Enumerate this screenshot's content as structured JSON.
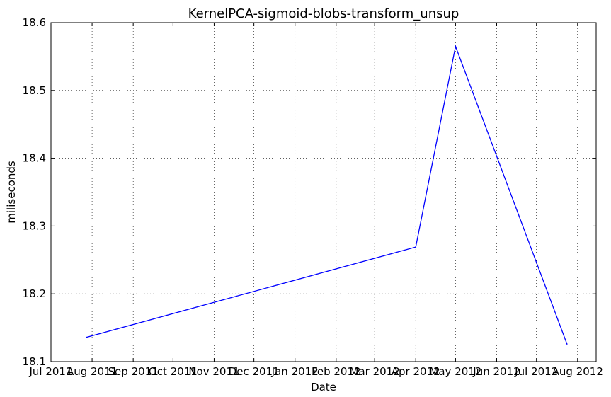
{
  "chart_data": {
    "type": "line",
    "title": "KernelPCA-sigmoid-blobs-transform_unsup",
    "xlabel": "Date",
    "ylabel": "miliseconds",
    "xlim": [
      "2011-07-01",
      "2012-08-15"
    ],
    "ylim": [
      18.1,
      18.6
    ],
    "x_ticks": [
      {
        "date": "2011-07-01",
        "label": "Jul 2011"
      },
      {
        "date": "2011-08-01",
        "label": "Aug 2011"
      },
      {
        "date": "2011-09-01",
        "label": "Sep 2011"
      },
      {
        "date": "2011-10-01",
        "label": "Oct 2011"
      },
      {
        "date": "2011-11-01",
        "label": "Nov 2011"
      },
      {
        "date": "2011-12-01",
        "label": "Dec 2011"
      },
      {
        "date": "2012-01-01",
        "label": "Jan 2012"
      },
      {
        "date": "2012-02-01",
        "label": "Feb 2012"
      },
      {
        "date": "2012-03-01",
        "label": "Mar 2012"
      },
      {
        "date": "2012-04-01",
        "label": "Apr 2012"
      },
      {
        "date": "2012-05-01",
        "label": "May 2012"
      },
      {
        "date": "2012-06-01",
        "label": "Jun 2012"
      },
      {
        "date": "2012-07-01",
        "label": "Jul 2012"
      },
      {
        "date": "2012-08-01",
        "label": "Aug 2012"
      }
    ],
    "y_ticks": [
      {
        "value": 18.1,
        "label": "18.1"
      },
      {
        "value": 18.2,
        "label": "18.2"
      },
      {
        "value": 18.3,
        "label": "18.3"
      },
      {
        "value": 18.4,
        "label": "18.4"
      },
      {
        "value": 18.5,
        "label": "18.5"
      },
      {
        "value": 18.6,
        "label": "18.6"
      }
    ],
    "grid": true,
    "series": [
      {
        "color": "#0000ff",
        "points": [
          {
            "x": "2011-07-28",
            "y": 18.136
          },
          {
            "x": "2012-04-01",
            "y": 18.269
          },
          {
            "x": "2012-05-01",
            "y": 18.565
          },
          {
            "x": "2012-07-24",
            "y": 18.126
          }
        ]
      }
    ]
  }
}
